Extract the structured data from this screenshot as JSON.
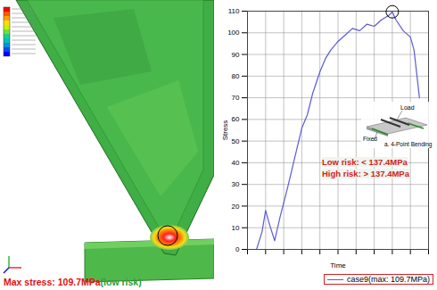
{
  "chart_data": {
    "type": "line",
    "x_label": "Time",
    "y_label": "Stress",
    "x": [
      0.05,
      0.08,
      0.1,
      0.12,
      0.15,
      0.18,
      0.22,
      0.26,
      0.3,
      0.33,
      0.36,
      0.4,
      0.43,
      0.46,
      0.5,
      0.54,
      0.58,
      0.62,
      0.66,
      0.7,
      0.74,
      0.78,
      0.8,
      0.82,
      0.86,
      0.9,
      0.92,
      0.95
    ],
    "series": [
      {
        "name": "case9(max: 109.7MPa)",
        "color": "#5b5bd6",
        "values": [
          0,
          8,
          18,
          12,
          4,
          15,
          28,
          42,
          56,
          62,
          72,
          82,
          88,
          92,
          96,
          99,
          102,
          101,
          104,
          103,
          106,
          108,
          109.7,
          106,
          101,
          98,
          92,
          70
        ]
      }
    ],
    "xlim": [
      0,
      1
    ],
    "xticks": [
      0,
      0.1,
      0.2,
      0.3,
      0.4,
      0.5,
      0.6,
      0.7,
      0.8,
      0.9,
      1
    ],
    "ylim": [
      0,
      110
    ],
    "yticks": [
      0,
      10,
      20,
      30,
      40,
      50,
      60,
      70,
      80,
      90,
      100,
      110
    ],
    "grid": true,
    "tick_labels": "y",
    "annotations": [
      {
        "text": "Low risk: < 137.4MPa",
        "color": "#d62020"
      },
      {
        "text": "High risk: > 137.4MPa",
        "color": "#d62020"
      }
    ],
    "inset": {
      "load": "Load",
      "fixed": "Fixed",
      "caption": "a. 4-Point Bending"
    }
  },
  "simulation": {
    "result_text": "Max stress: 109.7MPa",
    "result_color": "#e01010",
    "risk_text": "(low risk)",
    "risk_color": "#2e9e3a"
  }
}
